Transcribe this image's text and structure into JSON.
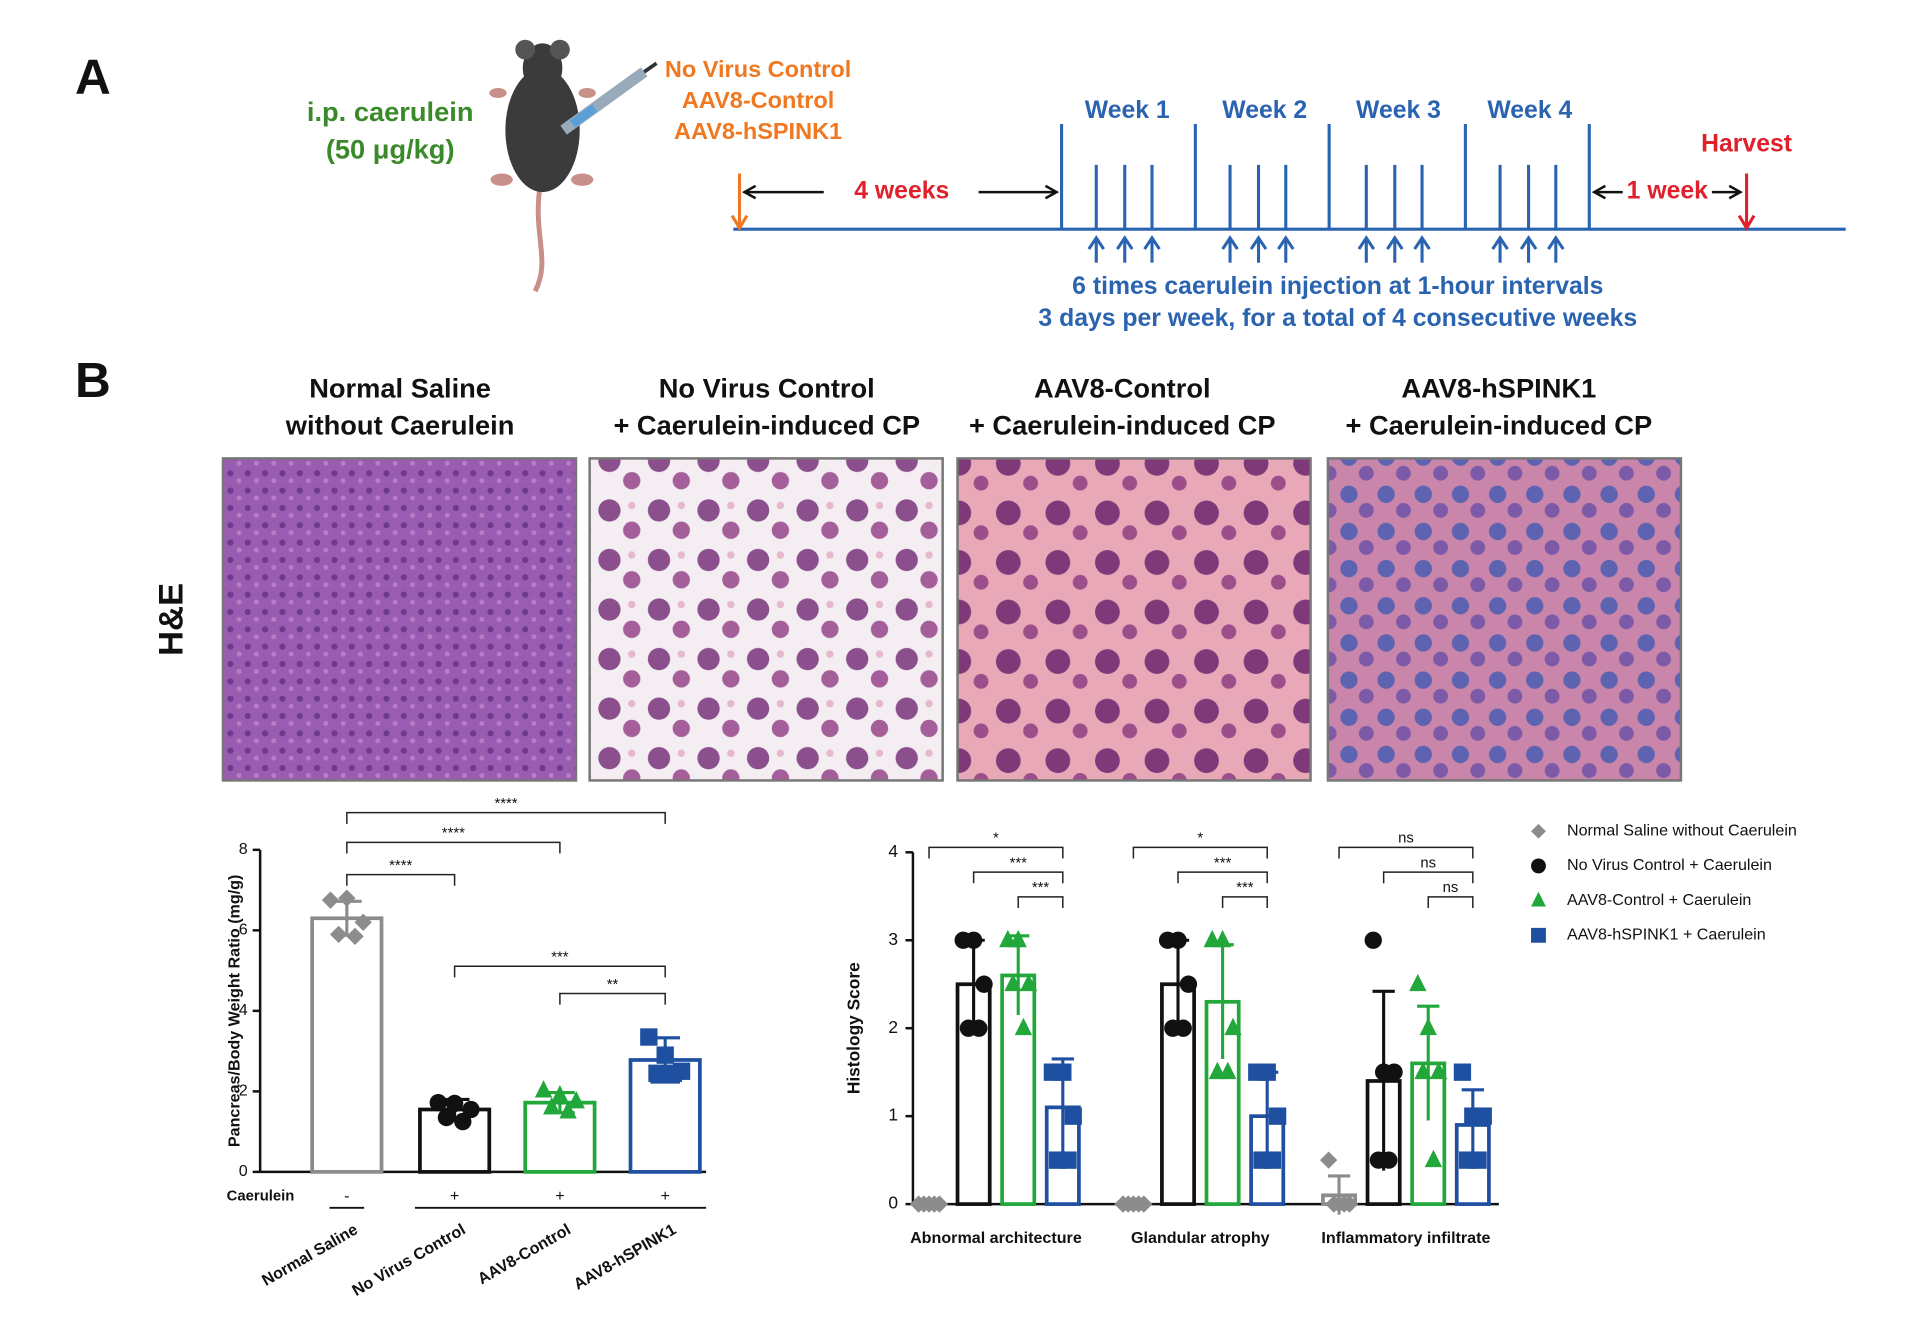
{
  "panel_a": {
    "label": "A",
    "drug": [
      "i.p. caerulein",
      "(50 μg/kg)"
    ],
    "treatments": [
      "No Virus Control",
      "AAV8-Control",
      "AAV8-hSPINK1"
    ],
    "lead_in": "4 weeks",
    "weeks": [
      "Week 1",
      "Week 2",
      "Week 3",
      "Week 4"
    ],
    "follow_up": "1 week",
    "harvest": "Harvest",
    "notes": [
      "6 times caerulein injection at 1-hour intervals",
      "3 days per week, for a total of 4 consecutive weeks"
    ]
  },
  "panel_b": {
    "label": "B",
    "stain": "H&E",
    "columns": [
      [
        "Normal Saline",
        "without Caerulein"
      ],
      [
        "No Virus Control",
        "+ Caerulein-induced CP"
      ],
      [
        "AAV8-Control",
        "+ Caerulein-induced CP"
      ],
      [
        "AAV8-hSPINK1",
        "+ Caerulein-induced CP"
      ]
    ]
  },
  "chart_data": [
    {
      "type": "bar",
      "y_label": "Pancreas/Body Weight Ratio (mg/g)",
      "categories": [
        "Normal Saline",
        "No Virus Control",
        "AAV8-Control",
        "AAV8-hSPINK1"
      ],
      "values": [
        6.3,
        1.55,
        1.72,
        2.78
      ],
      "errors": [
        0.42,
        0.25,
        0.25,
        0.55
      ],
      "points": [
        [
          6.75,
          6.8,
          6.2,
          5.9,
          5.85
        ],
        [
          1.72,
          1.7,
          1.55,
          1.35,
          1.25
        ],
        [
          2.02,
          1.9,
          1.75,
          1.6,
          1.5
        ],
        [
          3.35,
          2.9,
          2.5,
          2.45,
          2.45
        ]
      ],
      "colors": [
        "#8c8c8c",
        "#111111",
        "#22a83a",
        "#1f4fa0"
      ],
      "markers": [
        "diamond",
        "circle",
        "triangle",
        "square"
      ],
      "ylim": [
        0,
        8
      ],
      "yticks": [
        0,
        2,
        4,
        6,
        8
      ],
      "caerulein_row": {
        "label": "Caerulein",
        "signs": [
          "-",
          "+",
          "+",
          "+"
        ]
      },
      "significance": [
        "****",
        "****",
        "****",
        "***",
        "**"
      ]
    },
    {
      "type": "grouped_bar",
      "y_label": "Histology Score",
      "categories": [
        "Abnormal architecture",
        "Glandular atrophy",
        "Inflammatory infiltrate"
      ],
      "series": [
        {
          "name": "Normal Saline without Caerulein",
          "color": "#8c8c8c",
          "marker": "diamond",
          "values": [
            0,
            0,
            0.1
          ],
          "errors": [
            0,
            0,
            0.22
          ],
          "points": [
            [
              0,
              0,
              0,
              0,
              0
            ],
            [
              0,
              0,
              0,
              0,
              0
            ],
            [
              0.5,
              0,
              0,
              0,
              0
            ]
          ]
        },
        {
          "name": "No Virus Control + Caerulein",
          "color": "#111111",
          "marker": "circle",
          "values": [
            2.5,
            2.5,
            1.4
          ],
          "errors": [
            0.5,
            0.5,
            1.02
          ],
          "points": [
            [
              3,
              3,
              2.5,
              2,
              2
            ],
            [
              3,
              3,
              2.5,
              2,
              2
            ],
            [
              3,
              1.5,
              1.5,
              0.5,
              0.5
            ]
          ]
        },
        {
          "name": "AAV8-Control + Caerulein",
          "color": "#22a83a",
          "marker": "triangle",
          "values": [
            2.6,
            2.3,
            1.6
          ],
          "errors": [
            0.45,
            0.65,
            0.65
          ],
          "points": [
            [
              3,
              3,
              2.5,
              2.5,
              2
            ],
            [
              3,
              3,
              2,
              1.5,
              1.5
            ],
            [
              2.5,
              2,
              1.5,
              1.5,
              0.5
            ]
          ]
        },
        {
          "name": "AAV8-hSPINK1 + Caerulein",
          "color": "#1f4fa0",
          "marker": "square",
          "values": [
            1.1,
            1.0,
            0.9
          ],
          "errors": [
            0.55,
            0.5,
            0.4
          ],
          "points": [
            [
              1.5,
              1.5,
              1,
              0.5,
              0.5
            ],
            [
              1.5,
              1.5,
              1,
              0.5,
              0.5
            ],
            [
              1.5,
              1,
              1,
              0.5,
              0.5
            ]
          ]
        }
      ],
      "ylim": [
        0,
        4
      ],
      "yticks": [
        0,
        1,
        2,
        3,
        4
      ],
      "significance": [
        [
          "*",
          "***",
          "***"
        ],
        [
          "*",
          "***",
          "***"
        ],
        [
          "ns",
          "ns",
          "ns"
        ]
      ]
    }
  ]
}
